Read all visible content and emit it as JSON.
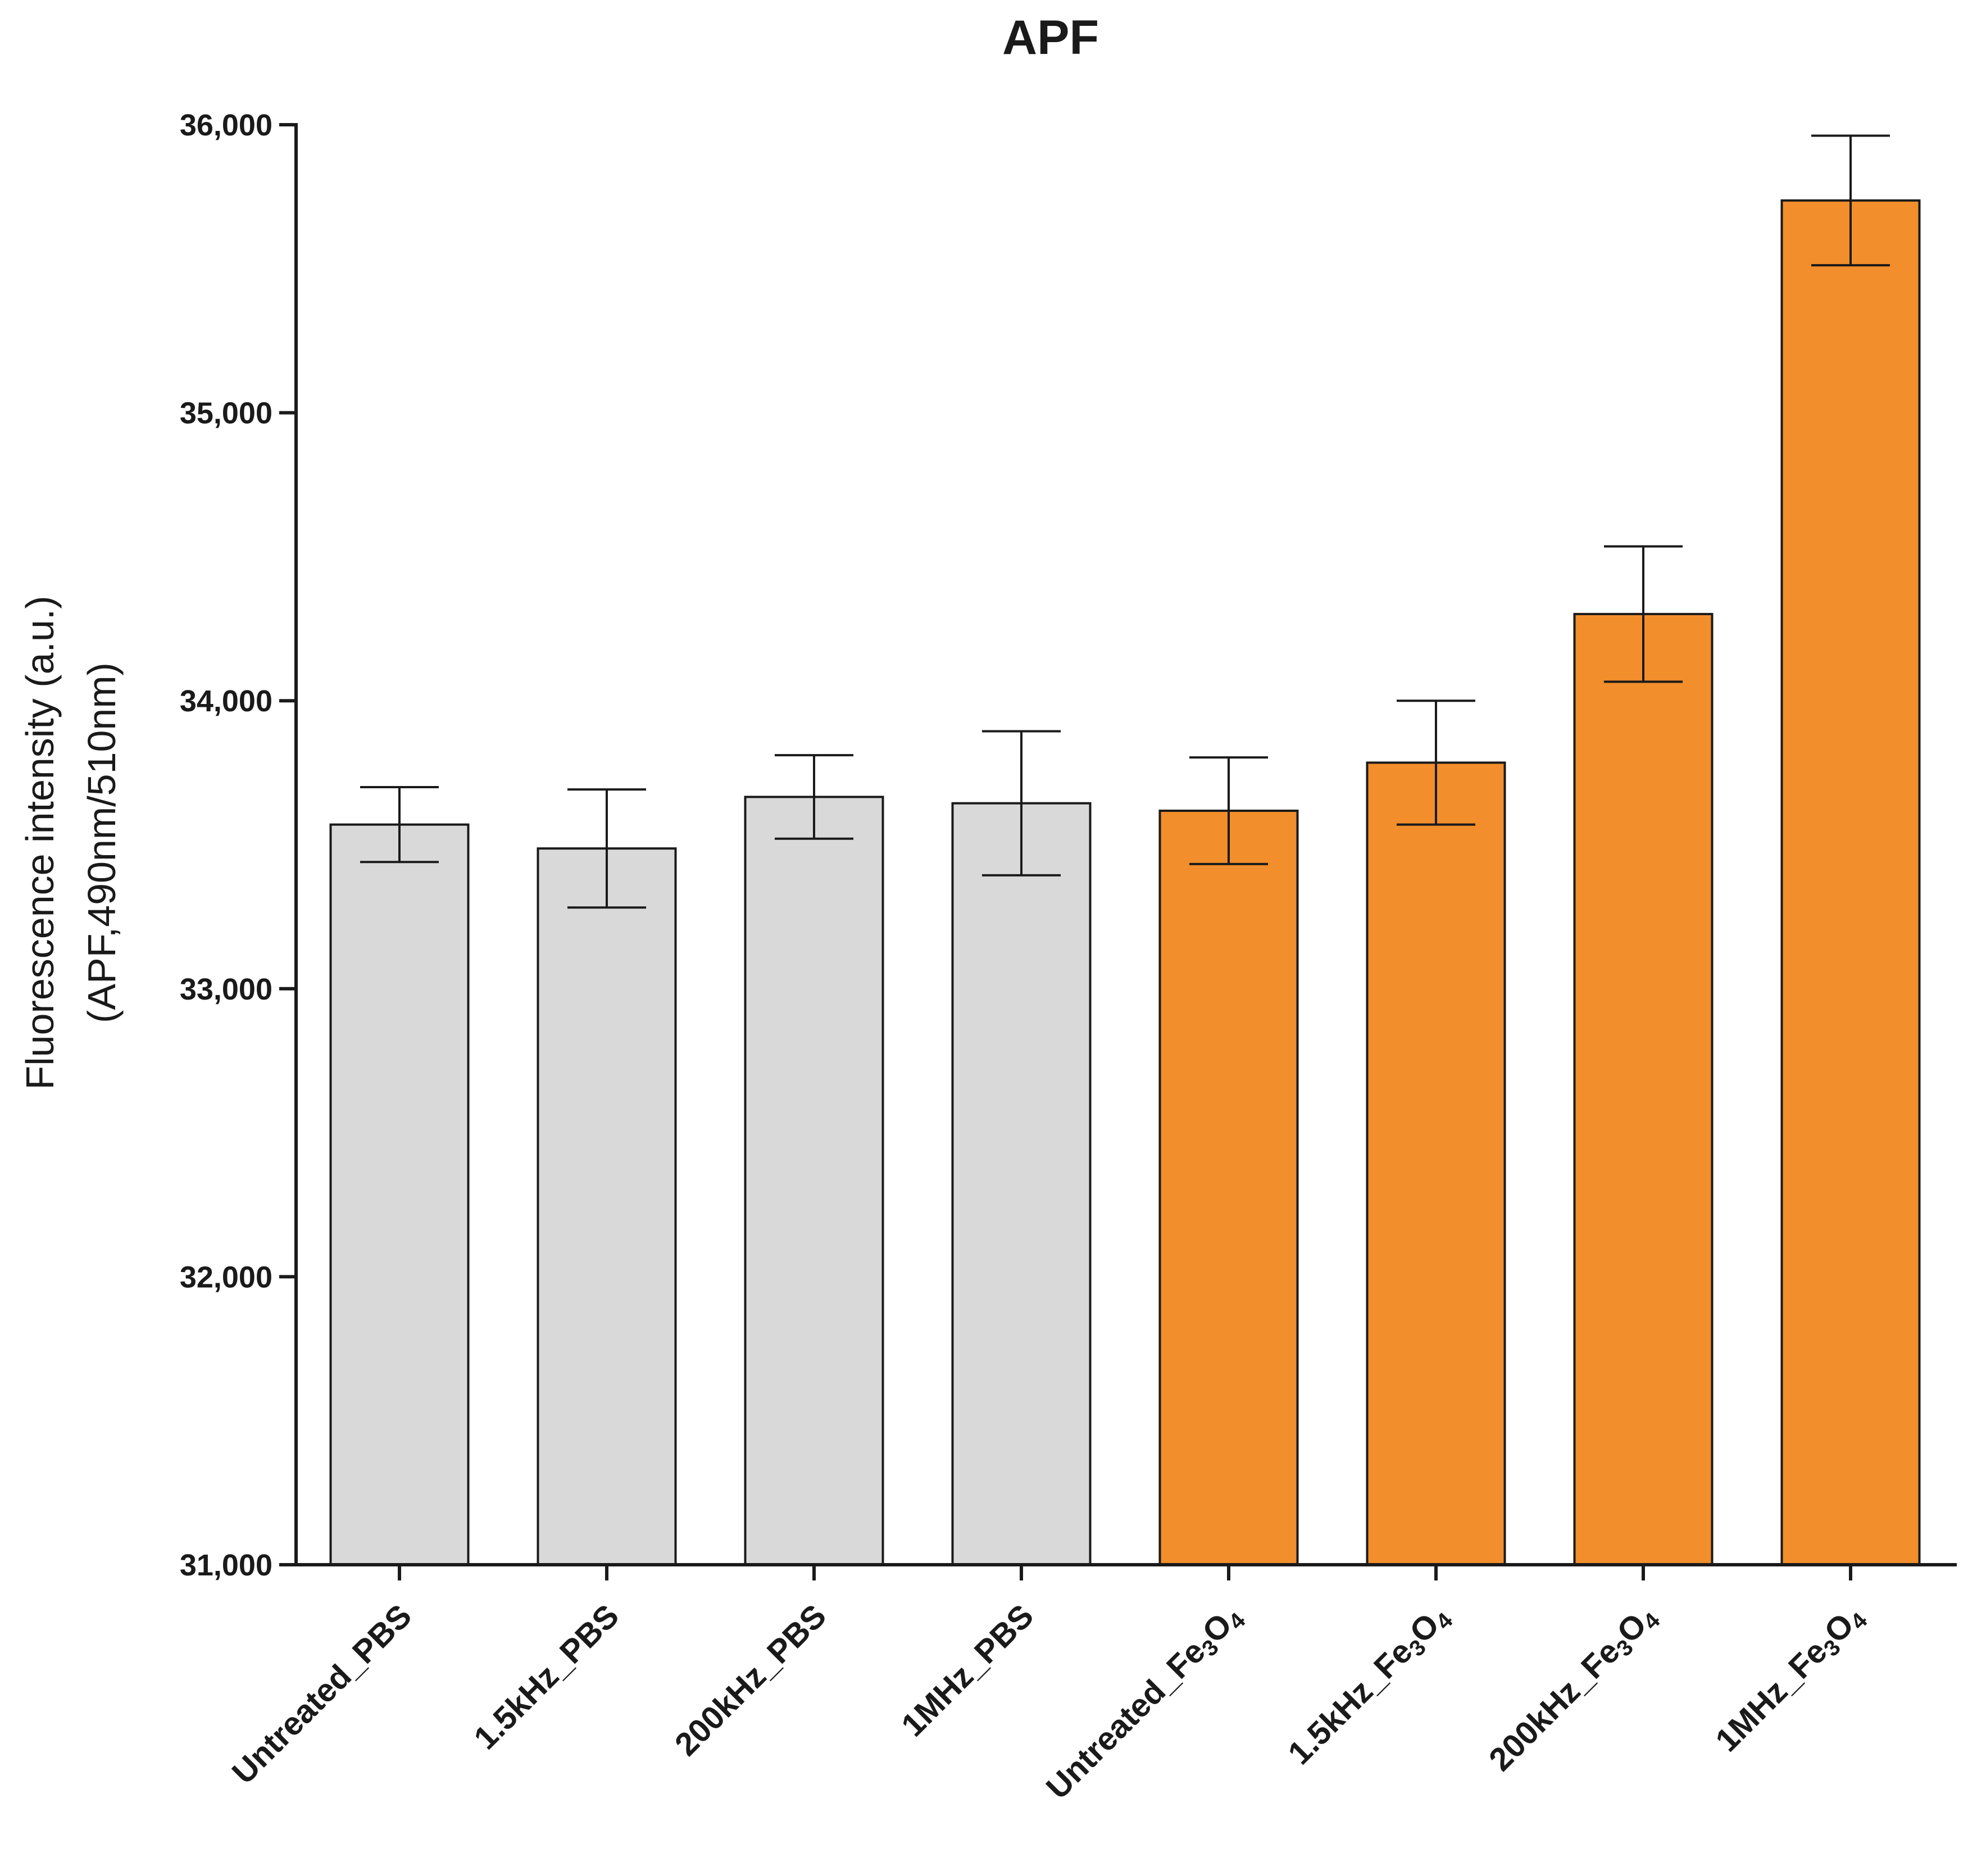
{
  "chart_data": {
    "type": "bar",
    "title": "APF",
    "xlabel": "",
    "ylabel": [
      "Fluorescence intensity (a.u.)",
      "(APF,490nm/510nm)"
    ],
    "ylim": [
      31000,
      36000
    ],
    "yticks": [
      31000,
      32000,
      33000,
      34000,
      35000,
      36000
    ],
    "ytick_labels": [
      "31,000",
      "32,000",
      "33,000",
      "34,000",
      "35,000",
      "36,000"
    ],
    "grid": false,
    "categories": [
      {
        "label": "Untreated_PBS"
      },
      {
        "label": "1.5kHz_PBS"
      },
      {
        "label": "200kHz_PBS"
      },
      {
        "label": "1MHz_PBS"
      },
      {
        "label": "Untreated_Fe",
        "sub": "3",
        "mid": "O",
        "sub2": "4"
      },
      {
        "label": "1.5kHz_Fe",
        "sub": "3",
        "mid": "O",
        "sub2": "4"
      },
      {
        "label": "200kHz_Fe",
        "sub": "3",
        "mid": "O",
        "sub2": "4"
      },
      {
        "label": "1MHz_Fe",
        "sub": "3",
        "mid": "O",
        "sub2": "4"
      }
    ],
    "values": [
      33570,
      33487,
      33666,
      33644,
      33618,
      33785,
      34301,
      35737
    ],
    "errors": [
      130,
      205,
      145,
      250,
      185,
      215,
      235,
      225
    ],
    "colors": [
      "#d9d9d9",
      "#d9d9d9",
      "#d9d9d9",
      "#d9d9d9",
      "#f28e2b",
      "#f28e2b",
      "#f28e2b",
      "#f28e2b"
    ],
    "edge_color": "#1a1a1a"
  }
}
